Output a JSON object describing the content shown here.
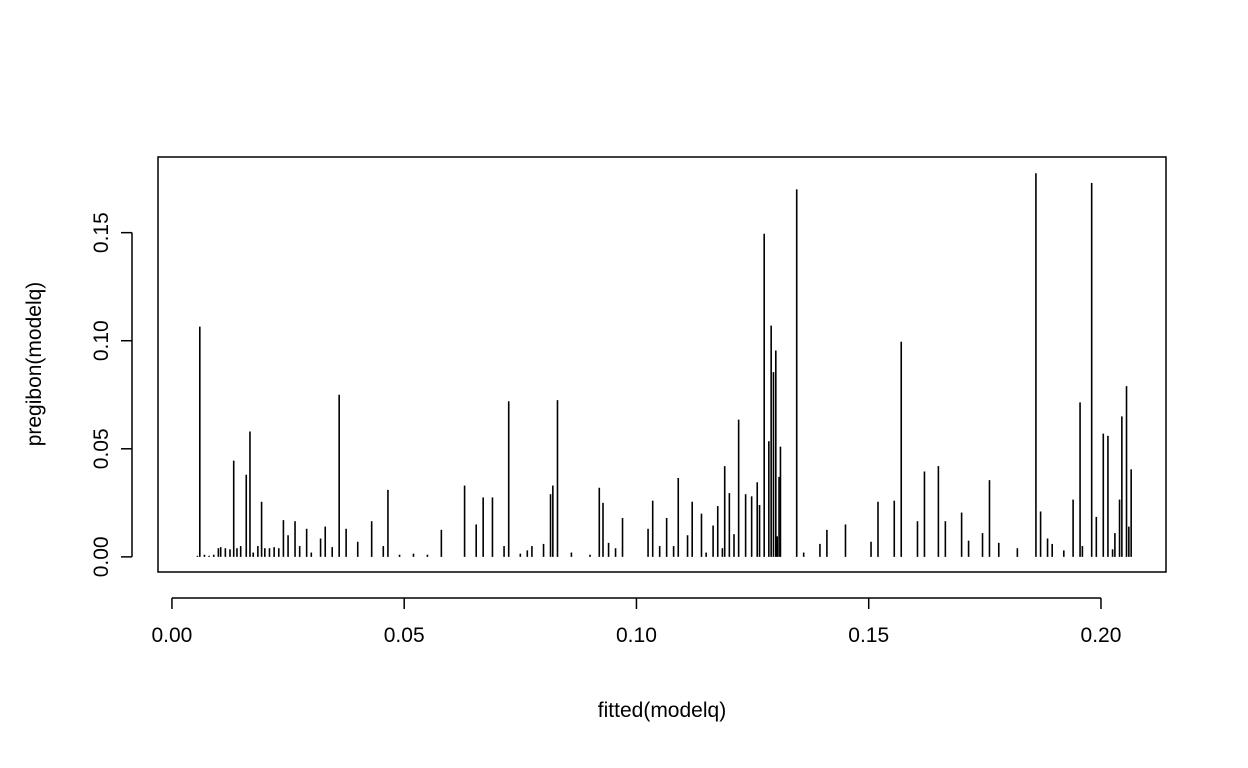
{
  "chart_data": {
    "type": "histogram-like vertical lines",
    "title": "",
    "xlabel": "fitted(modelq)",
    "ylabel": "pregibon(modelq)",
    "xlim": [
      -0.003,
      0.214
    ],
    "ylim": [
      -0.007,
      0.185
    ],
    "x_ticks": [
      0.0,
      0.05,
      0.1,
      0.15,
      0.2
    ],
    "x_tick_labels": [
      "0.00",
      "0.05",
      "0.10",
      "0.15",
      "0.20"
    ],
    "y_ticks": [
      0.0,
      0.05,
      0.1,
      0.15
    ],
    "y_tick_labels": [
      "0.00",
      "0.05",
      "0.10",
      "0.15"
    ],
    "grid": false,
    "line_color": "#000000",
    "x": [
      0.0055,
      0.006,
      0.007,
      0.008,
      0.009,
      0.01,
      0.0105,
      0.0115,
      0.0125,
      0.0133,
      0.014,
      0.0148,
      0.016,
      0.0168,
      0.0175,
      0.0185,
      0.0193,
      0.02,
      0.021,
      0.022,
      0.023,
      0.024,
      0.025,
      0.0265,
      0.0275,
      0.029,
      0.03,
      0.032,
      0.033,
      0.0345,
      0.036,
      0.0375,
      0.04,
      0.043,
      0.0455,
      0.0465,
      0.049,
      0.052,
      0.055,
      0.058,
      0.063,
      0.0655,
      0.067,
      0.069,
      0.0715,
      0.0725,
      0.075,
      0.0765,
      0.0775,
      0.08,
      0.0815,
      0.082,
      0.083,
      0.086,
      0.09,
      0.092,
      0.0928,
      0.094,
      0.0955,
      0.097,
      0.1025,
      0.1035,
      0.105,
      0.1065,
      0.108,
      0.109,
      0.111,
      0.112,
      0.114,
      0.115,
      0.1165,
      0.1175,
      0.1185,
      0.119,
      0.12,
      0.121,
      0.122,
      0.1235,
      0.1248,
      0.126,
      0.1265,
      0.1275,
      0.1285,
      0.129,
      0.1295,
      0.13,
      0.1303,
      0.1307,
      0.131,
      0.1345,
      0.136,
      0.1395,
      0.141,
      0.145,
      0.1505,
      0.152,
      0.1555,
      0.157,
      0.1605,
      0.162,
      0.165,
      0.1665,
      0.17,
      0.1715,
      0.1745,
      0.176,
      0.178,
      0.182,
      0.186,
      0.187,
      0.1885,
      0.1895,
      0.192,
      0.194,
      0.1955,
      0.196,
      0.198,
      0.199,
      0.2005,
      0.2015,
      0.2025,
      0.203,
      0.204,
      0.2045,
      0.2055,
      0.206,
      0.2065,
      0.207
    ],
    "y": [
      0.0005,
      0.1065,
      0.001,
      0.0005,
      0.001,
      0.004,
      0.0045,
      0.004,
      0.0035,
      0.0445,
      0.004,
      0.005,
      0.038,
      0.058,
      0.002,
      0.005,
      0.0255,
      0.004,
      0.004,
      0.0045,
      0.004,
      0.017,
      0.01,
      0.0165,
      0.005,
      0.013,
      0.002,
      0.0085,
      0.014,
      0.0045,
      0.075,
      0.013,
      0.007,
      0.0165,
      0.005,
      0.031,
      0.001,
      0.0015,
      0.001,
      0.0125,
      0.033,
      0.015,
      0.0275,
      0.0275,
      0.005,
      0.072,
      0.0015,
      0.003,
      0.005,
      0.006,
      0.029,
      0.033,
      0.0725,
      0.002,
      0.001,
      0.032,
      0.025,
      0.0065,
      0.004,
      0.018,
      0.013,
      0.026,
      0.005,
      0.018,
      0.005,
      0.0365,
      0.01,
      0.0255,
      0.02,
      0.002,
      0.0145,
      0.0235,
      0.004,
      0.042,
      0.0295,
      0.0105,
      0.0635,
      0.029,
      0.028,
      0.0345,
      0.024,
      0.1495,
      0.0535,
      0.107,
      0.0855,
      0.0955,
      0.0095,
      0.037,
      0.051,
      0.17,
      0.002,
      0.006,
      0.0125,
      0.015,
      0.007,
      0.0255,
      0.026,
      0.0995,
      0.0165,
      0.0395,
      0.042,
      0.0165,
      0.0205,
      0.0075,
      0.011,
      0.0355,
      0.0065,
      0.004,
      0.1775,
      0.021,
      0.0085,
      0.006,
      0.003,
      0.0265,
      0.0715,
      0.005,
      0.173,
      0.0185,
      0.057,
      0.056,
      0.0035,
      0.011,
      0.0265,
      0.065,
      0.079,
      0.014,
      0.0405,
      0.0
    ]
  }
}
